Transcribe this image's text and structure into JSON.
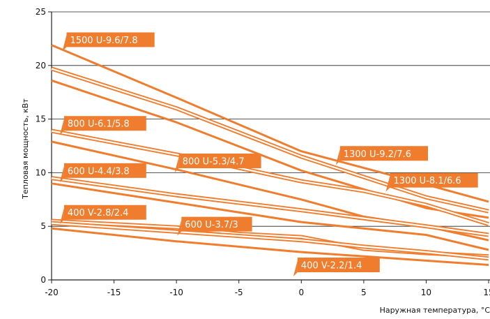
{
  "chart_data": {
    "type": "line",
    "title": "",
    "xlabel": "Наружная температура, °C",
    "ylabel": "Тепловая мощность, кВт",
    "xlim": [
      -20,
      15
    ],
    "ylim": [
      0,
      25
    ],
    "x_ticks": [
      "-20",
      "-15",
      "-10",
      "-5",
      "0",
      "5",
      "10",
      "15"
    ],
    "y_ticks": [
      "0",
      "5",
      "10",
      "15",
      "20",
      "25"
    ],
    "grid": "horizontal",
    "legend": "inline-tags",
    "colors": {
      "line": "#f07d2e",
      "tag": "#f07d2e",
      "tag_text": "#ffffff",
      "grid": "#222222"
    },
    "series": [
      {
        "name": "1500 U-9.6/7.8",
        "style": "single",
        "x": [
          -20,
          -10,
          0,
          10,
          15
        ],
        "y": [
          21.9,
          17.0,
          12.0,
          8.9,
          7.3
        ]
      },
      {
        "name": "",
        "style": "double",
        "x": [
          -20,
          -10,
          0,
          10,
          15
        ],
        "y": [
          19.7,
          16.0,
          11.5,
          7.7,
          6.4
        ]
      },
      {
        "name": "",
        "style": "single",
        "x": [
          -20,
          -10,
          0,
          10,
          15
        ],
        "y": [
          18.6,
          14.7,
          10.2,
          6.7,
          5.8
        ]
      },
      {
        "name": "800 U-6.1/5.8",
        "style": "double",
        "x": [
          -20,
          -10,
          0,
          5,
          10,
          15
        ],
        "y": [
          13.9,
          11.7,
          9.2,
          8.3,
          7.0,
          5.2
        ]
      },
      {
        "name": "800 U-5.3/4.7",
        "style": "single",
        "x": [
          -20,
          -10,
          0,
          5,
          10,
          15
        ],
        "y": [
          12.9,
          10.3,
          7.5,
          5.9,
          5.0,
          3.7
        ]
      },
      {
        "name": "1300 U-9.2/7.6",
        "style": "tag",
        "x": [],
        "y": []
      },
      {
        "name": "1300 U-8.1/6.6",
        "style": "tag",
        "x": [],
        "y": []
      },
      {
        "name": "600 U-4.4/3.8",
        "style": "double",
        "x": [
          -20,
          -10,
          0,
          10,
          15
        ],
        "y": [
          9.5,
          7.9,
          6.5,
          5.0,
          4.2
        ]
      },
      {
        "name": "",
        "style": "single",
        "x": [
          -20,
          -10,
          0,
          10,
          15
        ],
        "y": [
          9.0,
          7.2,
          5.4,
          4.2,
          2.8
        ]
      },
      {
        "name": "400 V-2.8/2.4",
        "style": "double",
        "x": [
          -20,
          -10,
          -5,
          0,
          5,
          10,
          15
        ],
        "y": [
          5.5,
          4.9,
          4.3,
          4.0,
          2.9,
          2.5,
          2.2
        ]
      },
      {
        "name": "600 U-3.7/3",
        "style": "double",
        "x": [
          -20,
          -10,
          0,
          5,
          10,
          15
        ],
        "y": [
          5.3,
          4.5,
          3.7,
          3.1,
          2.6,
          2.0
        ]
      },
      {
        "name": "400 V-2.2/1.4",
        "style": "single",
        "x": [
          -20,
          -10,
          0,
          10,
          15
        ],
        "y": [
          4.8,
          3.6,
          2.6,
          1.8,
          1.4
        ]
      }
    ],
    "labels": [
      {
        "text": "1500 U-9.6/7.8",
        "x": -18.8,
        "y": 22.4
      },
      {
        "text": "800 U-6.1/5.8",
        "x": -19.0,
        "y": 14.6
      },
      {
        "text": "800 U-5.3/4.7",
        "x": -9.8,
        "y": 11.1
      },
      {
        "text": "1300 U-9.2/7.6",
        "x": 3.1,
        "y": 11.8
      },
      {
        "text": "1300 U-8.1/6.6",
        "x": 7.1,
        "y": 9.3
      },
      {
        "text": "600 U-4.4/3.8",
        "x": -19.0,
        "y": 10.2
      },
      {
        "text": "400 V-2.8/2.4",
        "x": -19.0,
        "y": 6.3
      },
      {
        "text": "600 U-3.7/3",
        "x": -9.6,
        "y": 5.2
      },
      {
        "text": "400 V-2.2/1.4",
        "x": -0.3,
        "y": 1.4
      }
    ]
  }
}
